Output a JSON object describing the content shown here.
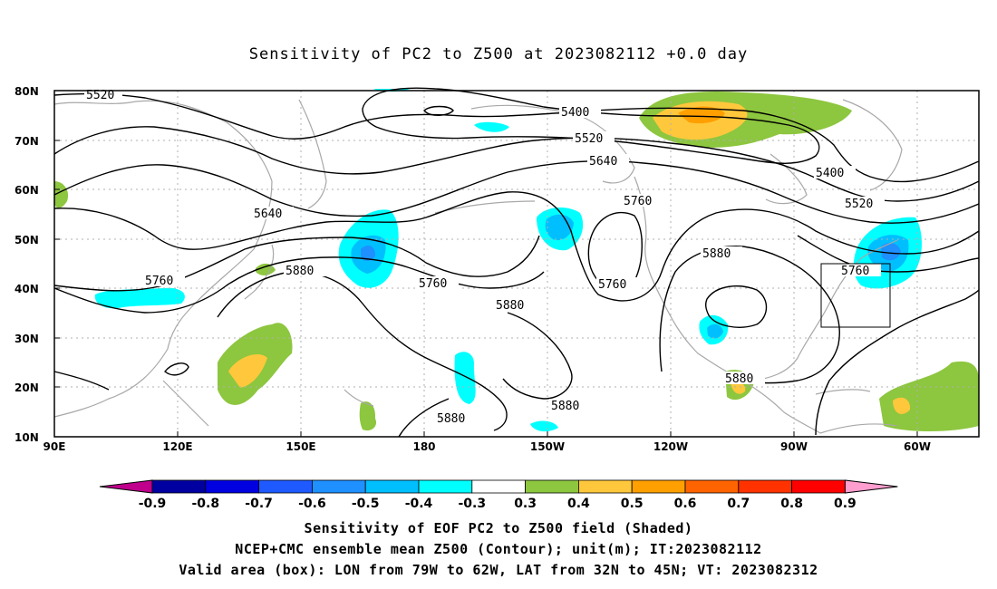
{
  "title": "Sensitivity of PC2 to Z500 at 2023082112 +0.0 day",
  "lat_labels": [
    "80N",
    "70N",
    "60N",
    "50N",
    "40N",
    "30N",
    "20N",
    "10N"
  ],
  "lon_labels": [
    "90E",
    "120E",
    "150E",
    "180",
    "150W",
    "120W",
    "90W",
    "60W"
  ],
  "contours": [
    {
      "id": "c5520a",
      "label": "5520"
    },
    {
      "id": "c5400a",
      "label": "5400"
    },
    {
      "id": "c5520b",
      "label": "5520"
    },
    {
      "id": "c5640a",
      "label": "5640"
    },
    {
      "id": "c5760a",
      "label": "5760"
    },
    {
      "id": "c5640b",
      "label": "5640"
    },
    {
      "id": "c5760b",
      "label": "5760"
    },
    {
      "id": "c5880a",
      "label": "5880"
    },
    {
      "id": "c5760c",
      "label": "5760"
    },
    {
      "id": "c5880b",
      "label": "5880"
    },
    {
      "id": "c5880c",
      "label": "5880"
    },
    {
      "id": "c5880d",
      "label": "5880"
    },
    {
      "id": "c5760d",
      "label": "5760"
    },
    {
      "id": "c5880e",
      "label": "5880"
    },
    {
      "id": "c5400b",
      "label": "5400"
    },
    {
      "id": "c5520c",
      "label": "5520"
    },
    {
      "id": "c5760e",
      "label": "5760"
    },
    {
      "id": "c5880f",
      "label": "5880"
    }
  ],
  "colorbar": {
    "labels": [
      "-0.9",
      "-0.8",
      "-0.7",
      "-0.6",
      "-0.5",
      "-0.4",
      "-0.3",
      "0.3",
      "0.4",
      "0.5",
      "0.6",
      "0.7",
      "0.8",
      "0.9"
    ],
    "colors": [
      "#0000a0",
      "#0000e0",
      "#1e5aff",
      "#1e90ff",
      "#00bfff",
      "#00ffff",
      "#ffffff",
      "#8dc63f",
      "#ffc83c",
      "#ff9f00",
      "#ff6400",
      "#ff3200",
      "#ff0000"
    ],
    "low_arrow_color": "#c0008c",
    "high_arrow_color": "#ff9ecf"
  },
  "captions": [
    "Sensitivity of EOF PC2 to Z500 field (Shaded)",
    "NCEP+CMC ensemble mean Z500 (Contour); unit(m); IT:2023082112",
    "Valid area (box): LON from 79W to 62W, LAT from 32N to 45N; VT: 2023082312"
  ]
}
